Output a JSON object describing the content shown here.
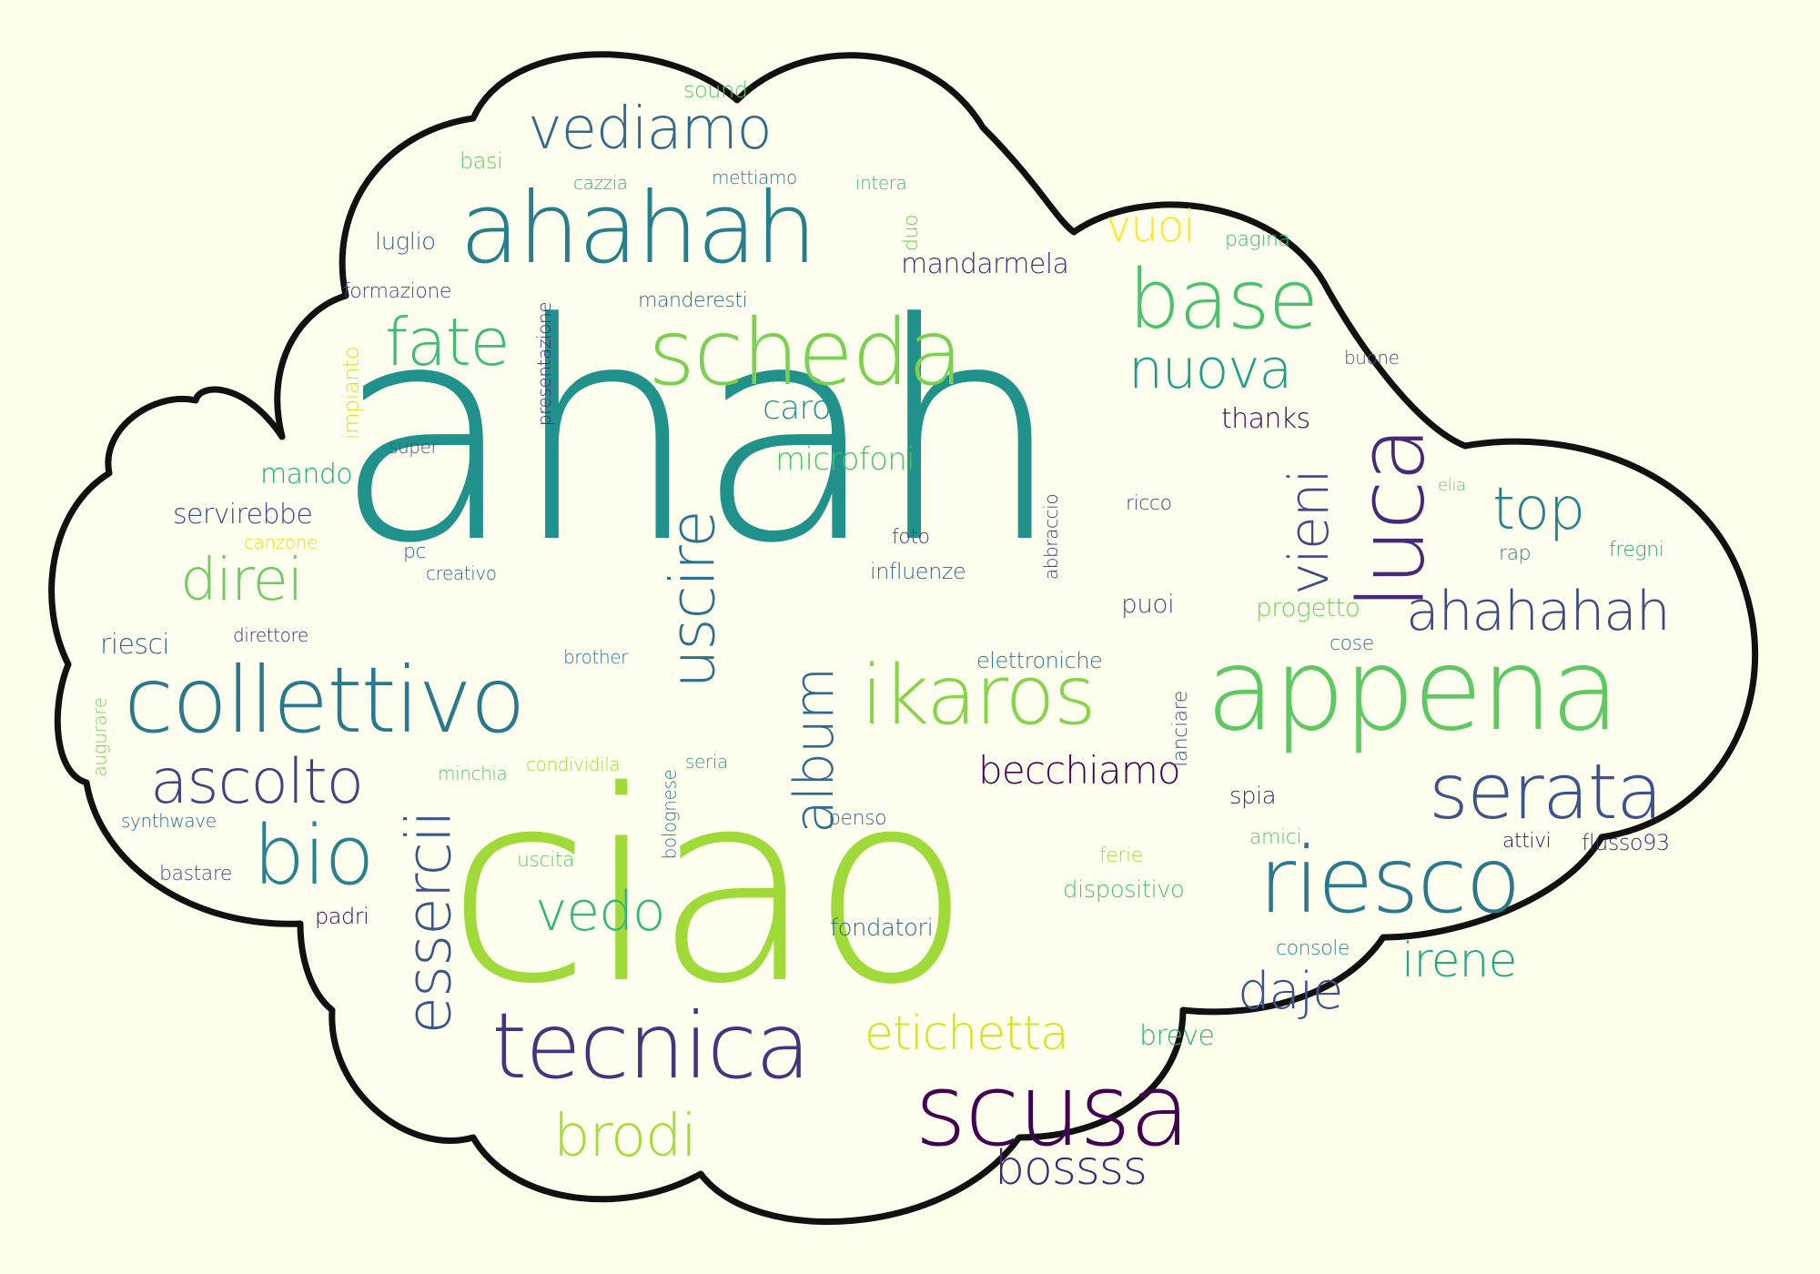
{
  "colors": {
    "background": "#fdfdec",
    "outline": "#111111"
  },
  "words": [
    {
      "text": "ahah",
      "color": "#21918c"
    },
    {
      "text": "ciao",
      "color": "#a0da39"
    },
    {
      "text": "appena",
      "color": "#5ec962"
    },
    {
      "text": "ahahah",
      "color": "#277f8e"
    },
    {
      "text": "scheda",
      "color": "#7ad151"
    },
    {
      "text": "collettivo",
      "color": "#2a788e"
    },
    {
      "text": "tecnica",
      "color": "#46327e"
    },
    {
      "text": "scusa",
      "color": "#440154"
    },
    {
      "text": "riesco",
      "color": "#2a788e"
    },
    {
      "text": "ikaros",
      "color": "#86d549"
    },
    {
      "text": "serata",
      "color": "#3b528b"
    },
    {
      "text": "luca",
      "color": "#482878"
    },
    {
      "text": "base",
      "color": "#4ac16d"
    },
    {
      "text": "ahahahah",
      "color": "#3e4989"
    },
    {
      "text": "vediamo",
      "color": "#31688e"
    },
    {
      "text": "ascolto",
      "color": "#414487"
    },
    {
      "text": "bio",
      "color": "#26828e"
    },
    {
      "text": "uscire",
      "color": "#2d708e"
    },
    {
      "text": "essercii",
      "color": "#39568c"
    },
    {
      "text": "album",
      "color": "#31688e"
    },
    {
      "text": "fate",
      "color": "#3fbc73"
    },
    {
      "text": "nuova",
      "color": "#1f9e89"
    },
    {
      "text": "vieni",
      "color": "#3e4989"
    },
    {
      "text": "top",
      "color": "#26828e"
    },
    {
      "text": "direi",
      "color": "#6ccd5a"
    },
    {
      "text": "vedo",
      "color": "#35b779"
    },
    {
      "text": "etichetta",
      "color": "#d8e219"
    },
    {
      "text": "brodi",
      "color": "#a5db36"
    },
    {
      "text": "bossss",
      "color": "#482576"
    },
    {
      "text": "daje",
      "color": "#3b528b"
    },
    {
      "text": "irene",
      "color": "#22a884"
    },
    {
      "text": "becchiamo",
      "color": "#440154"
    },
    {
      "text": "vuoi",
      "color": "#fde725"
    },
    {
      "text": "caro",
      "color": "#21918c"
    },
    {
      "text": "microfoni",
      "color": "#4ac16d"
    },
    {
      "text": "mando",
      "color": "#22a884"
    },
    {
      "text": "servirebbe",
      "color": "#3e4989"
    },
    {
      "text": "mandarmela",
      "color": "#482878"
    },
    {
      "text": "thanks",
      "color": "#440154"
    },
    {
      "text": "sound",
      "color": "#54c568"
    },
    {
      "text": "basi",
      "color": "#5ec962"
    },
    {
      "text": "cazzia",
      "color": "#2db27d"
    },
    {
      "text": "mettiamo",
      "color": "#2a788e"
    },
    {
      "text": "intera",
      "color": "#35b779"
    },
    {
      "text": "luglio",
      "color": "#31688e"
    },
    {
      "text": "duo",
      "color": "#70cf57"
    },
    {
      "text": "pagina",
      "color": "#35b779"
    },
    {
      "text": "formazione",
      "color": "#3e4989"
    },
    {
      "text": "manderesti",
      "color": "#31688e"
    },
    {
      "text": "presentazione",
      "color": "#482878"
    },
    {
      "text": "impianto",
      "color": "#dde318"
    },
    {
      "text": "buone",
      "color": "#3b528b"
    },
    {
      "text": "super",
      "color": "#3b528b"
    },
    {
      "text": "canzone",
      "color": "#dde318"
    },
    {
      "text": "pc",
      "color": "#31688e"
    },
    {
      "text": "creativo",
      "color": "#31688e"
    },
    {
      "text": "foto",
      "color": "#3e4989"
    },
    {
      "text": "influenze",
      "color": "#31688e"
    },
    {
      "text": "abbraccio",
      "color": "#46327e"
    },
    {
      "text": "ricco",
      "color": "#3e4989"
    },
    {
      "text": "elia",
      "color": "#5ec962"
    },
    {
      "text": "rap",
      "color": "#26828e"
    },
    {
      "text": "fregni",
      "color": "#22a884"
    },
    {
      "text": "puoi",
      "color": "#3b528b"
    },
    {
      "text": "progetto",
      "color": "#70cf57"
    },
    {
      "text": "cose",
      "color": "#2a788e"
    },
    {
      "text": "riesci",
      "color": "#31688e"
    },
    {
      "text": "direttore",
      "color": "#482878"
    },
    {
      "text": "brother",
      "color": "#2a788e"
    },
    {
      "text": "elettroniche",
      "color": "#2a788e"
    },
    {
      "text": "lanciare",
      "color": "#3b528b"
    },
    {
      "text": "augurare",
      "color": "#70cf57"
    },
    {
      "text": "minchia",
      "color": "#54c568"
    },
    {
      "text": "condividila",
      "color": "#a0da39"
    },
    {
      "text": "bolognese",
      "color": "#2a788e"
    },
    {
      "text": "seria",
      "color": "#1f9e89"
    },
    {
      "text": "spia",
      "color": "#482878"
    },
    {
      "text": "synthwave",
      "color": "#31688e"
    },
    {
      "text": "penso",
      "color": "#31688e"
    },
    {
      "text": "amici",
      "color": "#54c568"
    },
    {
      "text": "attivi",
      "color": "#440154"
    },
    {
      "text": "flusso93",
      "color": "#482878"
    },
    {
      "text": "bastare",
      "color": "#3b528b"
    },
    {
      "text": "uscita",
      "color": "#5ec962"
    },
    {
      "text": "ferie",
      "color": "#a5db36"
    },
    {
      "text": "dispositivo",
      "color": "#4ac16d"
    },
    {
      "text": "padri",
      "color": "#440154"
    },
    {
      "text": "fondatori",
      "color": "#31688e"
    },
    {
      "text": "console",
      "color": "#21918c"
    },
    {
      "text": "breve",
      "color": "#2db27d"
    }
  ]
}
